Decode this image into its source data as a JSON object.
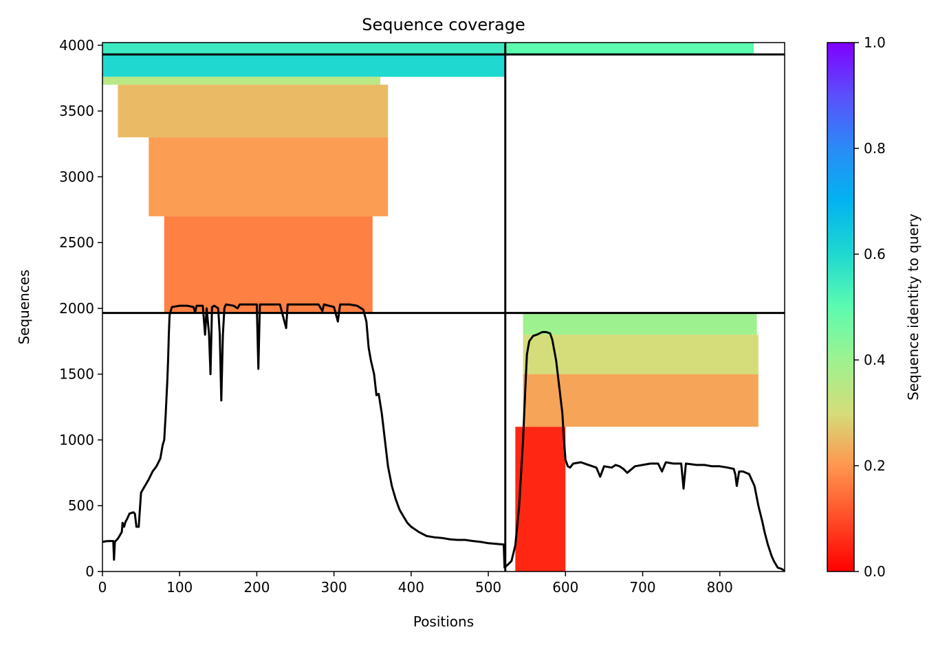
{
  "chart_data": {
    "type": "heatmap",
    "title": "Sequence coverage",
    "xlabel": "Positions",
    "ylabel": "Sequences",
    "xlim": [
      0,
      884
    ],
    "ylim": [
      0,
      4020
    ],
    "x_ticks": [
      0,
      100,
      200,
      300,
      400,
      500,
      600,
      700,
      800
    ],
    "y_ticks": [
      0,
      500,
      1000,
      1500,
      2000,
      2500,
      3000,
      3500,
      4000
    ],
    "chain_boundary_x": 522,
    "row_boundaries_y": [
      1965,
      3930
    ],
    "colorbar": {
      "label": "Sequence identity to query",
      "colormap": "rainbow_r",
      "range": [
        0,
        1
      ],
      "ticks": [
        "0.0",
        "0.2",
        "0.4",
        "0.6",
        "0.8",
        "1.0"
      ]
    },
    "coverage_blocks": [
      {
        "x": [
          0,
          522
        ],
        "y": [
          3930,
          4020
        ],
        "identity": 0.55
      },
      {
        "x": [
          0,
          522
        ],
        "y": [
          3760,
          3930
        ],
        "identity": 0.6
      },
      {
        "x": [
          0,
          360
        ],
        "y": [
          3700,
          3760
        ],
        "identity": 0.35
      },
      {
        "x": [
          20,
          370
        ],
        "y": [
          3300,
          3700
        ],
        "identity": 0.25
      },
      {
        "x": [
          60,
          370
        ],
        "y": [
          2700,
          3300
        ],
        "identity": 0.21
      },
      {
        "x": [
          80,
          350
        ],
        "y": [
          1965,
          2700
        ],
        "identity": 0.17
      },
      {
        "x": [
          522,
          844
        ],
        "y": [
          3930,
          4020
        ],
        "identity": 0.5
      },
      {
        "x": [
          545,
          848
        ],
        "y": [
          1800,
          1965
        ],
        "identity": 0.4
      },
      {
        "x": [
          545,
          850
        ],
        "y": [
          1500,
          1800
        ],
        "identity": 0.3
      },
      {
        "x": [
          545,
          850
        ],
        "y": [
          1100,
          1500
        ],
        "identity": 0.22
      },
      {
        "x": [
          535,
          600
        ],
        "y": [
          0,
          1100
        ],
        "identity": 0.05
      }
    ],
    "coverage_line": [
      [
        0,
        225
      ],
      [
        5,
        230
      ],
      [
        10,
        232
      ],
      [
        14,
        232
      ],
      [
        15,
        90
      ],
      [
        16,
        225
      ],
      [
        20,
        250
      ],
      [
        22,
        270
      ],
      [
        25,
        300
      ],
      [
        26,
        370
      ],
      [
        28,
        340
      ],
      [
        30,
        380
      ],
      [
        32,
        400
      ],
      [
        35,
        440
      ],
      [
        40,
        450
      ],
      [
        42,
        440
      ],
      [
        44,
        340
      ],
      [
        47,
        340
      ],
      [
        50,
        600
      ],
      [
        55,
        650
      ],
      [
        60,
        700
      ],
      [
        65,
        760
      ],
      [
        70,
        800
      ],
      [
        75,
        860
      ],
      [
        78,
        960
      ],
      [
        80,
        1000
      ],
      [
        82,
        1200
      ],
      [
        84,
        1450
      ],
      [
        85,
        1600
      ],
      [
        86,
        1800
      ],
      [
        87,
        1950
      ],
      [
        90,
        2010
      ],
      [
        100,
        2020
      ],
      [
        110,
        2020
      ],
      [
        118,
        2010
      ],
      [
        120,
        1970
      ],
      [
        122,
        2020
      ],
      [
        130,
        2020
      ],
      [
        133,
        1800
      ],
      [
        135,
        2000
      ],
      [
        138,
        1810
      ],
      [
        140,
        1500
      ],
      [
        142,
        2010
      ],
      [
        145,
        2020
      ],
      [
        150,
        2000
      ],
      [
        152,
        1800
      ],
      [
        154,
        1300
      ],
      [
        156,
        1800
      ],
      [
        158,
        2000
      ],
      [
        160,
        2030
      ],
      [
        170,
        2020
      ],
      [
        175,
        2000
      ],
      [
        178,
        2030
      ],
      [
        185,
        2030
      ],
      [
        200,
        2030
      ],
      [
        202,
        1540
      ],
      [
        204,
        2030
      ],
      [
        210,
        2030
      ],
      [
        230,
        2030
      ],
      [
        238,
        1850
      ],
      [
        240,
        2030
      ],
      [
        260,
        2030
      ],
      [
        280,
        2030
      ],
      [
        285,
        1980
      ],
      [
        287,
        2030
      ],
      [
        300,
        2010
      ],
      [
        305,
        1900
      ],
      [
        308,
        2030
      ],
      [
        320,
        2030
      ],
      [
        330,
        2020
      ],
      [
        338,
        1990
      ],
      [
        342,
        1900
      ],
      [
        345,
        1700
      ],
      [
        348,
        1600
      ],
      [
        352,
        1500
      ],
      [
        355,
        1340
      ],
      [
        358,
        1350
      ],
      [
        362,
        1200
      ],
      [
        366,
        1000
      ],
      [
        370,
        800
      ],
      [
        375,
        650
      ],
      [
        380,
        550
      ],
      [
        385,
        470
      ],
      [
        390,
        420
      ],
      [
        395,
        370
      ],
      [
        400,
        340
      ],
      [
        410,
        300
      ],
      [
        420,
        270
      ],
      [
        430,
        260
      ],
      [
        440,
        255
      ],
      [
        450,
        245
      ],
      [
        460,
        240
      ],
      [
        470,
        240
      ],
      [
        480,
        232
      ],
      [
        490,
        225
      ],
      [
        500,
        215
      ],
      [
        510,
        210
      ],
      [
        520,
        205
      ],
      [
        521,
        30
      ],
      [
        525,
        50
      ],
      [
        530,
        80
      ],
      [
        535,
        200
      ],
      [
        540,
        500
      ],
      [
        545,
        1000
      ],
      [
        548,
        1400
      ],
      [
        550,
        1650
      ],
      [
        553,
        1750
      ],
      [
        558,
        1790
      ],
      [
        563,
        1800
      ],
      [
        570,
        1820
      ],
      [
        575,
        1820
      ],
      [
        580,
        1810
      ],
      [
        583,
        1760
      ],
      [
        588,
        1600
      ],
      [
        592,
        1400
      ],
      [
        596,
        1200
      ],
      [
        598,
        1000
      ],
      [
        600,
        850
      ],
      [
        603,
        800
      ],
      [
        606,
        790
      ],
      [
        610,
        820
      ],
      [
        620,
        830
      ],
      [
        630,
        810
      ],
      [
        640,
        790
      ],
      [
        645,
        720
      ],
      [
        650,
        800
      ],
      [
        660,
        790
      ],
      [
        665,
        810
      ],
      [
        670,
        800
      ],
      [
        675,
        780
      ],
      [
        680,
        750
      ],
      [
        690,
        800
      ],
      [
        700,
        810
      ],
      [
        710,
        820
      ],
      [
        720,
        820
      ],
      [
        725,
        760
      ],
      [
        730,
        830
      ],
      [
        740,
        820
      ],
      [
        750,
        820
      ],
      [
        753,
        630
      ],
      [
        756,
        820
      ],
      [
        770,
        810
      ],
      [
        780,
        810
      ],
      [
        790,
        800
      ],
      [
        800,
        800
      ],
      [
        810,
        790
      ],
      [
        818,
        780
      ],
      [
        820,
        740
      ],
      [
        822,
        650
      ],
      [
        825,
        760
      ],
      [
        830,
        760
      ],
      [
        838,
        740
      ],
      [
        845,
        650
      ],
      [
        850,
        500
      ],
      [
        855,
        380
      ],
      [
        858,
        300
      ],
      [
        862,
        210
      ],
      [
        867,
        120
      ],
      [
        870,
        80
      ],
      [
        875,
        30
      ],
      [
        880,
        20
      ],
      [
        884,
        5
      ]
    ]
  }
}
